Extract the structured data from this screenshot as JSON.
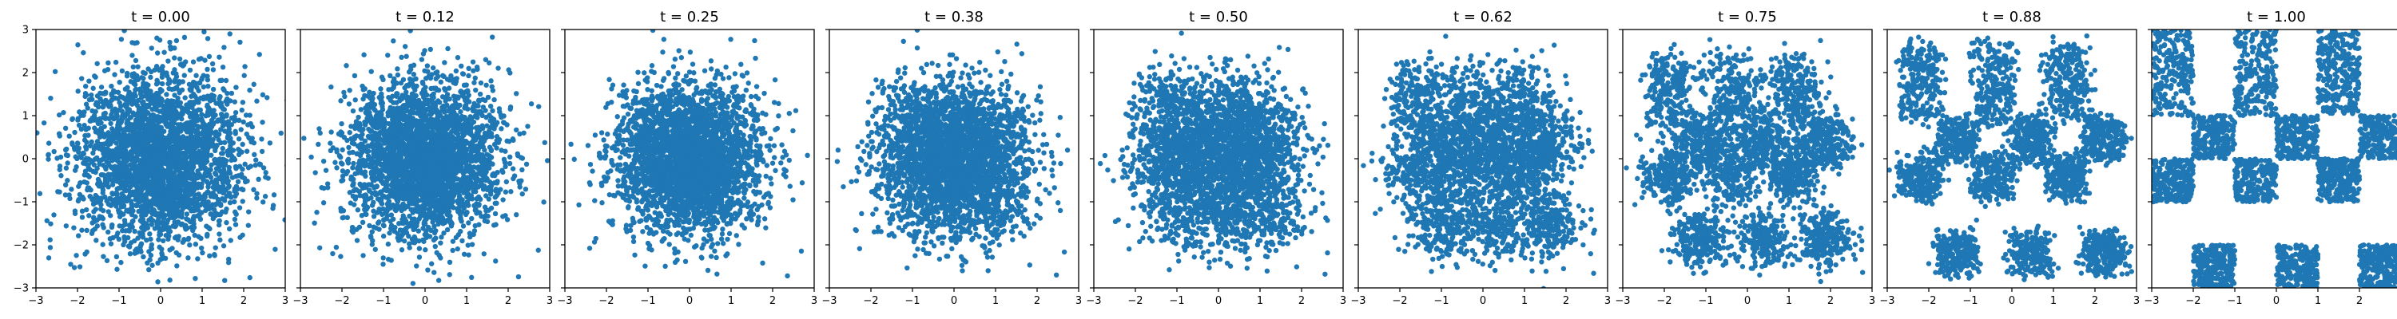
{
  "chart_data": {
    "type": "scatter",
    "description_of_process": "",
    "panels": [
      {
        "title": "t = 0.00",
        "t": 0.0
      },
      {
        "title": "t = 0.12",
        "t": 0.12
      },
      {
        "title": "t = 0.25",
        "t": 0.25
      },
      {
        "title": "t = 0.38",
        "t": 0.38
      },
      {
        "title": "t = 0.50",
        "t": 0.5
      },
      {
        "title": "t = 0.62",
        "t": 0.62
      },
      {
        "title": "t = 0.75",
        "t": 0.75
      },
      {
        "title": "t = 0.88",
        "t": 0.88
      },
      {
        "title": "t = 1.00",
        "t": 1.0
      }
    ],
    "xlim": [
      -3,
      3
    ],
    "ylim": [
      -3,
      3
    ],
    "xticks": [
      -3,
      -2,
      -1,
      0,
      1,
      2,
      3
    ],
    "yticks": [
      -3,
      -2,
      -1,
      0,
      1,
      2,
      3
    ],
    "xtick_labels": [
      "−3",
      "−2",
      "−1",
      "0",
      "1",
      "2",
      "3"
    ],
    "ytick_labels": [
      "−3",
      "−2",
      "−1",
      "0",
      "1",
      "2",
      "3"
    ],
    "y_tick_labels_on_first_panel_only": true,
    "grid": false,
    "legend": "none",
    "source_distribution": "standard-normal",
    "target_distribution": "checkerboard",
    "checkerboard_cells": [
      [
        -3,
        -2,
        1,
        3
      ],
      [
        -1,
        0,
        1,
        3
      ],
      [
        1,
        2,
        1,
        3
      ],
      [
        -2,
        -1,
        0,
        1
      ],
      [
        0,
        1,
        0,
        1
      ],
      [
        2,
        3,
        0,
        1
      ],
      [
        -3,
        -2,
        -1,
        0
      ],
      [
        -1,
        0,
        -1,
        0
      ],
      [
        1,
        2,
        -1,
        0
      ],
      [
        -2,
        -1,
        -3,
        -2
      ],
      [
        0,
        1,
        -3,
        -2
      ],
      [
        2,
        3,
        -3,
        -2
      ]
    ],
    "points_per_panel": 3000,
    "marker_color": "#1f77b4"
  }
}
